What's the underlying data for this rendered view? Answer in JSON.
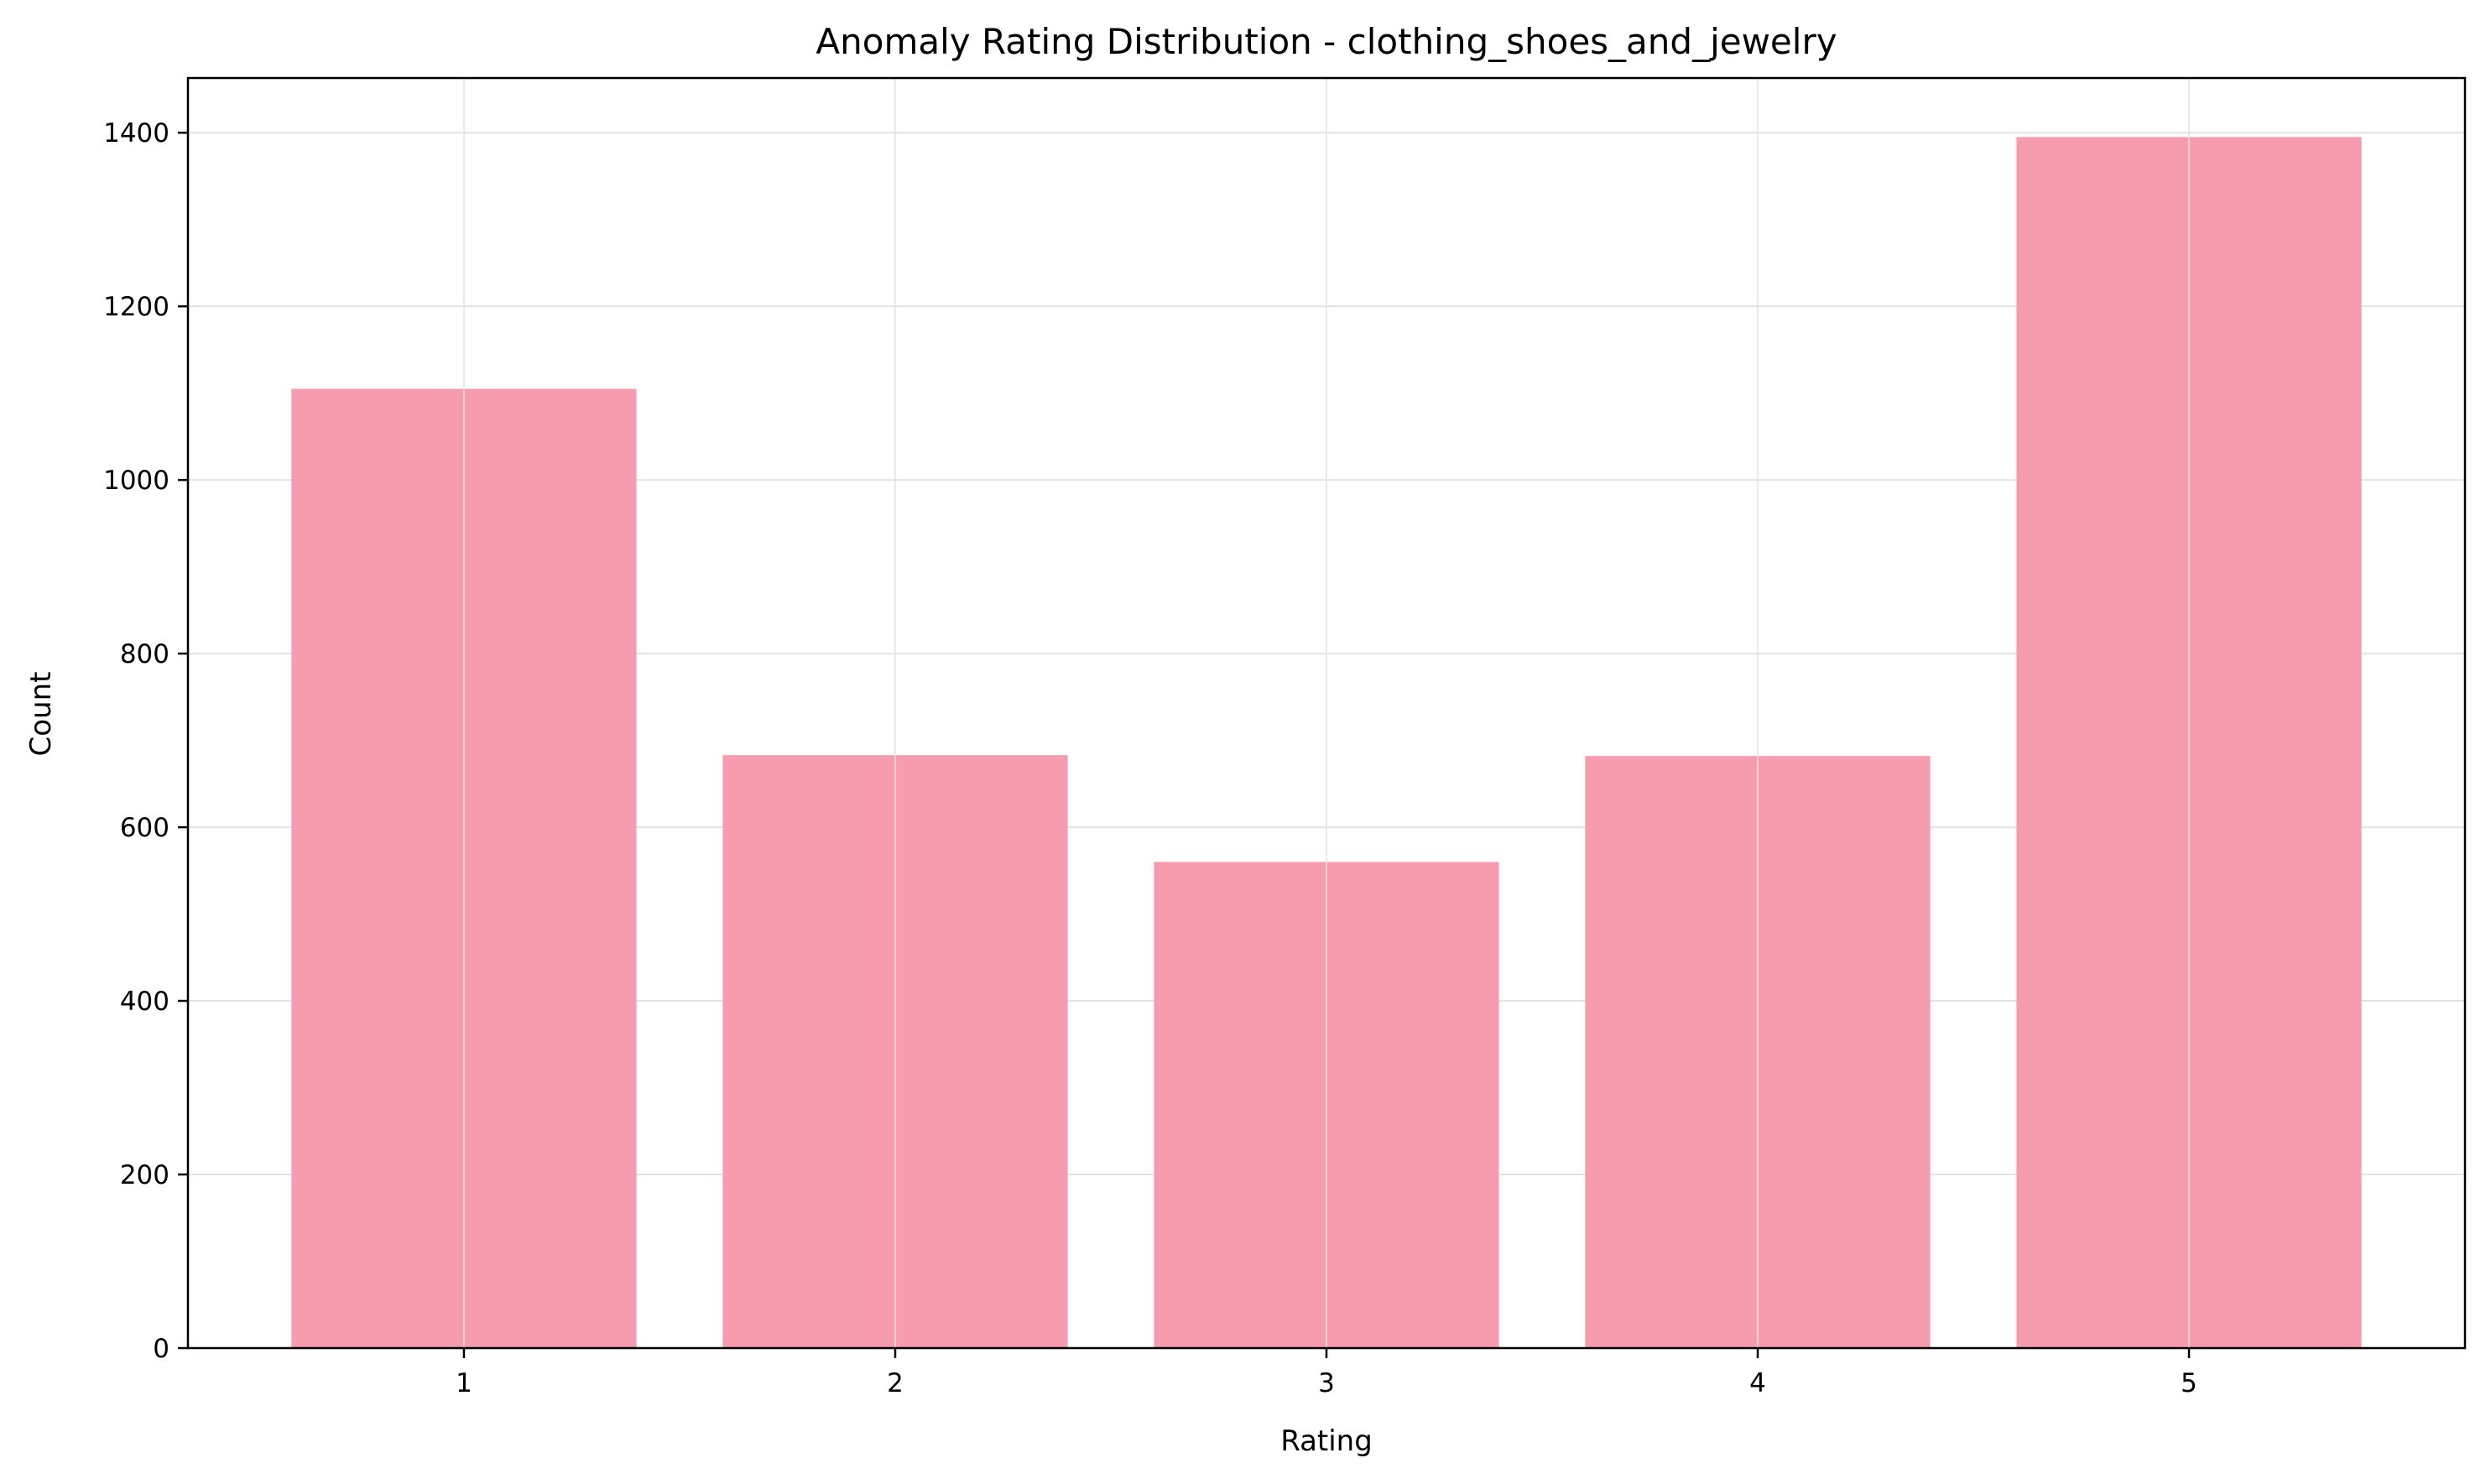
{
  "chart_data": {
    "type": "bar",
    "title": "Anomaly Rating Distribution - clothing_shoes_and_jewelry",
    "xlabel": "Rating",
    "ylabel": "Count",
    "categories": [
      "1",
      "2",
      "3",
      "4",
      "5"
    ],
    "values": [
      1105,
      683,
      560,
      682,
      1395
    ],
    "ylim": [
      0,
      1463
    ],
    "yticks": [
      0,
      200,
      400,
      600,
      800,
      1000,
      1200,
      1400
    ],
    "grid": true,
    "legend": "none",
    "colors": {
      "bar": "#f79cae",
      "grid": "#e3e3e3",
      "axis": "#000000",
      "text": "#000000"
    }
  }
}
